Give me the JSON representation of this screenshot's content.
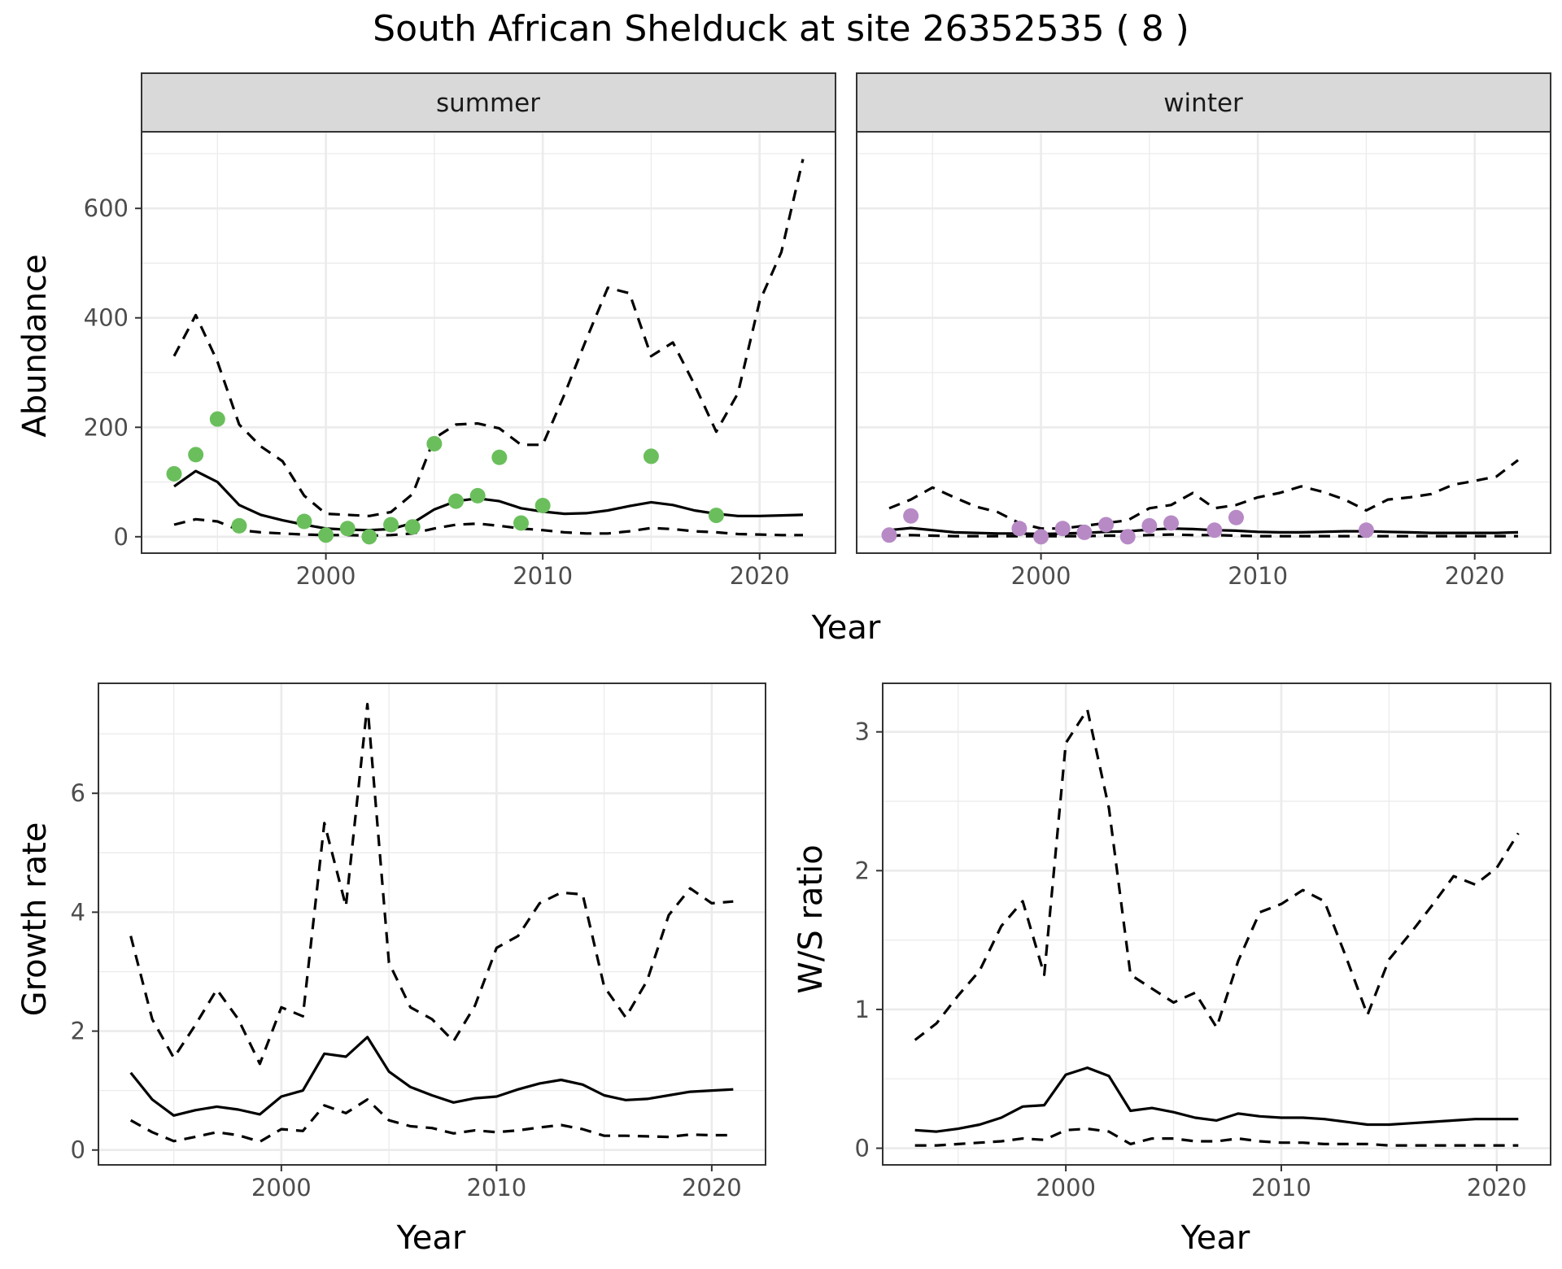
{
  "figure": {
    "title": "South African Shelduck at site 26352535 ( 8 )",
    "colors": {
      "summer_points": "#6abf5c",
      "winter_points": "#b78ac6",
      "line": "#000000",
      "grid": "#ebebeb",
      "strip_bg": "#d9d9d9",
      "panel_border": "#333333"
    }
  },
  "chart_data": [
    {
      "type": "line",
      "panel": "summer",
      "strip": "summer",
      "xlabel": "",
      "ylabel": "Abundance",
      "xlim": [
        1991.5,
        2023.5
      ],
      "ylim": [
        -30,
        740
      ],
      "xticks": [
        2000,
        2010,
        2020
      ],
      "yticks": [
        0,
        200,
        400,
        600
      ],
      "grid": true,
      "points": {
        "x": [
          1993,
          1994,
          1995,
          1996,
          1999,
          2000,
          2001,
          2002,
          2003,
          2004,
          2005,
          2006,
          2007,
          2008,
          2009,
          2010,
          2015,
          2018
        ],
        "y": [
          115,
          150,
          215,
          20,
          28,
          3,
          15,
          0,
          22,
          18,
          170,
          65,
          75,
          145,
          25,
          57,
          147,
          39
        ]
      },
      "series": [
        {
          "style": "solid",
          "x": [
            1993,
            1994,
            1995,
            1996,
            1997,
            1998,
            1999,
            2000,
            2001,
            2002,
            2003,
            2004,
            2005,
            2006,
            2007,
            2008,
            2009,
            2010,
            2011,
            2012,
            2013,
            2014,
            2015,
            2016,
            2017,
            2018,
            2019,
            2020,
            2021,
            2022
          ],
          "y": [
            92,
            120,
            100,
            58,
            40,
            30,
            22,
            15,
            13,
            12,
            14,
            25,
            50,
            65,
            70,
            65,
            52,
            46,
            42,
            43,
            48,
            56,
            63,
            58,
            48,
            42,
            38,
            38,
            39,
            40
          ]
        },
        {
          "style": "dashed",
          "x": [
            1993,
            1994,
            1995,
            1996,
            1997,
            1998,
            1999,
            2000,
            2001,
            2002,
            2003,
            2004,
            2005,
            2006,
            2007,
            2008,
            2009,
            2010,
            2011,
            2012,
            2013,
            2014,
            2015,
            2016,
            2017,
            2018,
            2019,
            2020,
            2021,
            2022
          ],
          "y": [
            330,
            405,
            320,
            205,
            165,
            138,
            75,
            42,
            40,
            38,
            45,
            78,
            180,
            205,
            207,
            198,
            168,
            168,
            260,
            360,
            455,
            445,
            330,
            355,
            278,
            192,
            262,
            430,
            520,
            690
          ]
        },
        {
          "style": "dashed",
          "x": [
            1993,
            1994,
            1995,
            1996,
            1997,
            1998,
            1999,
            2000,
            2001,
            2002,
            2003,
            2004,
            2005,
            2006,
            2007,
            2008,
            2009,
            2010,
            2011,
            2012,
            2013,
            2014,
            2015,
            2016,
            2017,
            2018,
            2019,
            2020,
            2021,
            2022
          ],
          "y": [
            22,
            32,
            28,
            12,
            8,
            6,
            4,
            3,
            3,
            2,
            3,
            6,
            15,
            22,
            24,
            20,
            15,
            12,
            8,
            6,
            6,
            10,
            16,
            14,
            10,
            8,
            5,
            4,
            3,
            3
          ]
        }
      ]
    },
    {
      "type": "line",
      "panel": "winter",
      "strip": "winter",
      "xlabel": "",
      "ylabel": "",
      "xlim": [
        1991.5,
        2023.5
      ],
      "ylim": [
        -30,
        740
      ],
      "xticks": [
        2000,
        2010,
        2020
      ],
      "yticks": [
        0,
        200,
        400,
        600
      ],
      "grid": true,
      "points": {
        "x": [
          1993,
          1994,
          1999,
          2000,
          2001,
          2002,
          2003,
          2004,
          2005,
          2006,
          2008,
          2009,
          2015
        ],
        "y": [
          3,
          38,
          15,
          0,
          15,
          8,
          22,
          0,
          20,
          25,
          12,
          35,
          12
        ]
      },
      "series": [
        {
          "style": "solid",
          "x": [
            1993,
            1994,
            1995,
            1996,
            1997,
            1998,
            1999,
            2000,
            2001,
            2002,
            2003,
            2004,
            2005,
            2006,
            2007,
            2008,
            2009,
            2010,
            2011,
            2012,
            2013,
            2014,
            2015,
            2016,
            2017,
            2018,
            2019,
            2020,
            2021,
            2022
          ],
          "y": [
            12,
            16,
            12,
            8,
            7,
            6,
            6,
            5,
            6,
            7,
            9,
            10,
            13,
            15,
            14,
            12,
            11,
            9,
            8,
            8,
            9,
            10,
            10,
            9,
            8,
            7,
            7,
            7,
            7,
            8
          ]
        },
        {
          "style": "dashed",
          "x": [
            1993,
            1994,
            1995,
            1996,
            1997,
            1998,
            1999,
            2000,
            2001,
            2002,
            2003,
            2004,
            2005,
            2006,
            2007,
            2008,
            2009,
            2010,
            2011,
            2012,
            2013,
            2014,
            2015,
            2016,
            2017,
            2018,
            2019,
            2020,
            2021,
            2022
          ],
          "y": [
            52,
            68,
            90,
            72,
            55,
            45,
            25,
            15,
            15,
            20,
            25,
            30,
            52,
            58,
            80,
            52,
            58,
            72,
            80,
            92,
            82,
            68,
            48,
            68,
            72,
            78,
            95,
            102,
            110,
            140
          ]
        },
        {
          "style": "dashed",
          "x": [
            1993,
            1994,
            1995,
            1996,
            1997,
            1998,
            1999,
            2000,
            2001,
            2002,
            2003,
            2004,
            2005,
            2006,
            2007,
            2008,
            2009,
            2010,
            2011,
            2012,
            2013,
            2014,
            2015,
            2016,
            2017,
            2018,
            2019,
            2020,
            2021,
            2022
          ],
          "y": [
            2,
            3,
            2,
            1,
            1,
            1,
            1,
            1,
            1,
            1,
            2,
            2,
            3,
            4,
            3,
            3,
            2,
            1,
            1,
            1,
            1,
            1,
            1,
            1,
            1,
            1,
            1,
            1,
            1,
            1
          ]
        }
      ]
    },
    {
      "type": "line",
      "panel": "growth",
      "xlabel": "Year",
      "ylabel": "Growth rate",
      "xlim": [
        1991.5,
        2022.5
      ],
      "ylim": [
        -0.25,
        7.85
      ],
      "xticks": [
        2000,
        2010,
        2020
      ],
      "yticks": [
        0,
        2,
        4,
        6
      ],
      "grid": true,
      "series": [
        {
          "style": "solid",
          "x": [
            1993,
            1994,
            1995,
            1996,
            1997,
            1998,
            1999,
            2000,
            2001,
            2002,
            2003,
            2004,
            2005,
            2006,
            2007,
            2008,
            2009,
            2010,
            2011,
            2012,
            2013,
            2014,
            2015,
            2016,
            2017,
            2018,
            2019,
            2020,
            2021
          ],
          "y": [
            1.3,
            0.85,
            0.58,
            0.67,
            0.73,
            0.68,
            0.6,
            0.9,
            1.0,
            1.62,
            1.57,
            1.9,
            1.32,
            1.06,
            0.92,
            0.8,
            0.87,
            0.9,
            1.02,
            1.12,
            1.18,
            1.1,
            0.92,
            0.84,
            0.86,
            0.92,
            0.98,
            1.0,
            1.02
          ]
        },
        {
          "style": "dashed",
          "x": [
            1993,
            1994,
            1995,
            1996,
            1997,
            1998,
            1999,
            2000,
            2001,
            2002,
            2003,
            2004,
            2005,
            2006,
            2007,
            2008,
            2009,
            2010,
            2011,
            2012,
            2013,
            2014,
            2015,
            2016,
            2017,
            2018,
            2019,
            2020,
            2021
          ],
          "y": [
            3.6,
            2.2,
            1.55,
            2.1,
            2.7,
            2.2,
            1.45,
            2.4,
            2.25,
            5.5,
            4.1,
            7.5,
            3.15,
            2.4,
            2.2,
            1.83,
            2.43,
            3.4,
            3.6,
            4.15,
            4.33,
            4.3,
            2.75,
            2.23,
            2.85,
            3.95,
            4.4,
            4.15,
            4.18
          ]
        },
        {
          "style": "dashed",
          "x": [
            1993,
            1994,
            1995,
            1996,
            1997,
            1998,
            1999,
            2000,
            2001,
            2002,
            2003,
            2004,
            2005,
            2006,
            2007,
            2008,
            2009,
            2010,
            2011,
            2012,
            2013,
            2014,
            2015,
            2016,
            2017,
            2018,
            2019,
            2020,
            2021
          ],
          "y": [
            0.5,
            0.3,
            0.15,
            0.22,
            0.3,
            0.25,
            0.14,
            0.35,
            0.32,
            0.75,
            0.62,
            0.85,
            0.5,
            0.4,
            0.37,
            0.28,
            0.33,
            0.3,
            0.33,
            0.38,
            0.42,
            0.35,
            0.24,
            0.24,
            0.23,
            0.22,
            0.26,
            0.25,
            0.25
          ]
        }
      ]
    },
    {
      "type": "line",
      "panel": "ratio",
      "xlabel": "Year",
      "ylabel": "W/S ratio",
      "xlim": [
        1991.5,
        2022.5
      ],
      "ylim": [
        -0.12,
        3.35
      ],
      "xticks": [
        2000,
        2010,
        2020
      ],
      "yticks": [
        0,
        1,
        2,
        3
      ],
      "grid": true,
      "series": [
        {
          "style": "solid",
          "x": [
            1993,
            1994,
            1995,
            1996,
            1997,
            1998,
            1999,
            2000,
            2001,
            2002,
            2003,
            2004,
            2005,
            2006,
            2007,
            2008,
            2009,
            2010,
            2011,
            2012,
            2013,
            2014,
            2015,
            2016,
            2017,
            2018,
            2019,
            2020,
            2021
          ],
          "y": [
            0.13,
            0.12,
            0.14,
            0.17,
            0.22,
            0.3,
            0.31,
            0.53,
            0.58,
            0.52,
            0.27,
            0.29,
            0.26,
            0.22,
            0.2,
            0.25,
            0.23,
            0.22,
            0.22,
            0.21,
            0.19,
            0.17,
            0.17,
            0.18,
            0.19,
            0.2,
            0.21,
            0.21,
            0.21
          ]
        },
        {
          "style": "dashed",
          "x": [
            1993,
            1994,
            1995,
            1996,
            1997,
            1998,
            1999,
            2000,
            2001,
            2002,
            2003,
            2004,
            2005,
            2006,
            2007,
            2008,
            2009,
            2010,
            2011,
            2012,
            2013,
            2014,
            2015,
            2016,
            2017,
            2018,
            2019,
            2020,
            2021
          ],
          "y": [
            0.78,
            0.9,
            1.1,
            1.28,
            1.6,
            1.78,
            1.25,
            2.92,
            3.16,
            2.45,
            1.25,
            1.15,
            1.05,
            1.12,
            0.87,
            1.35,
            1.7,
            1.76,
            1.86,
            1.78,
            1.38,
            0.96,
            1.36,
            1.55,
            1.75,
            1.96,
            1.9,
            2.02,
            2.27
          ]
        },
        {
          "style": "dashed",
          "x": [
            1993,
            1994,
            1995,
            1996,
            1997,
            1998,
            1999,
            2000,
            2001,
            2002,
            2003,
            2004,
            2005,
            2006,
            2007,
            2008,
            2009,
            2010,
            2011,
            2012,
            2013,
            2014,
            2015,
            2016,
            2017,
            2018,
            2019,
            2020,
            2021
          ],
          "y": [
            0.02,
            0.02,
            0.03,
            0.04,
            0.05,
            0.07,
            0.06,
            0.13,
            0.14,
            0.12,
            0.03,
            0.07,
            0.07,
            0.05,
            0.05,
            0.07,
            0.05,
            0.04,
            0.04,
            0.03,
            0.03,
            0.03,
            0.02,
            0.02,
            0.02,
            0.02,
            0.02,
            0.02,
            0.02
          ]
        }
      ]
    }
  ],
  "shared_axis": {
    "top_xlabel": "Year"
  }
}
